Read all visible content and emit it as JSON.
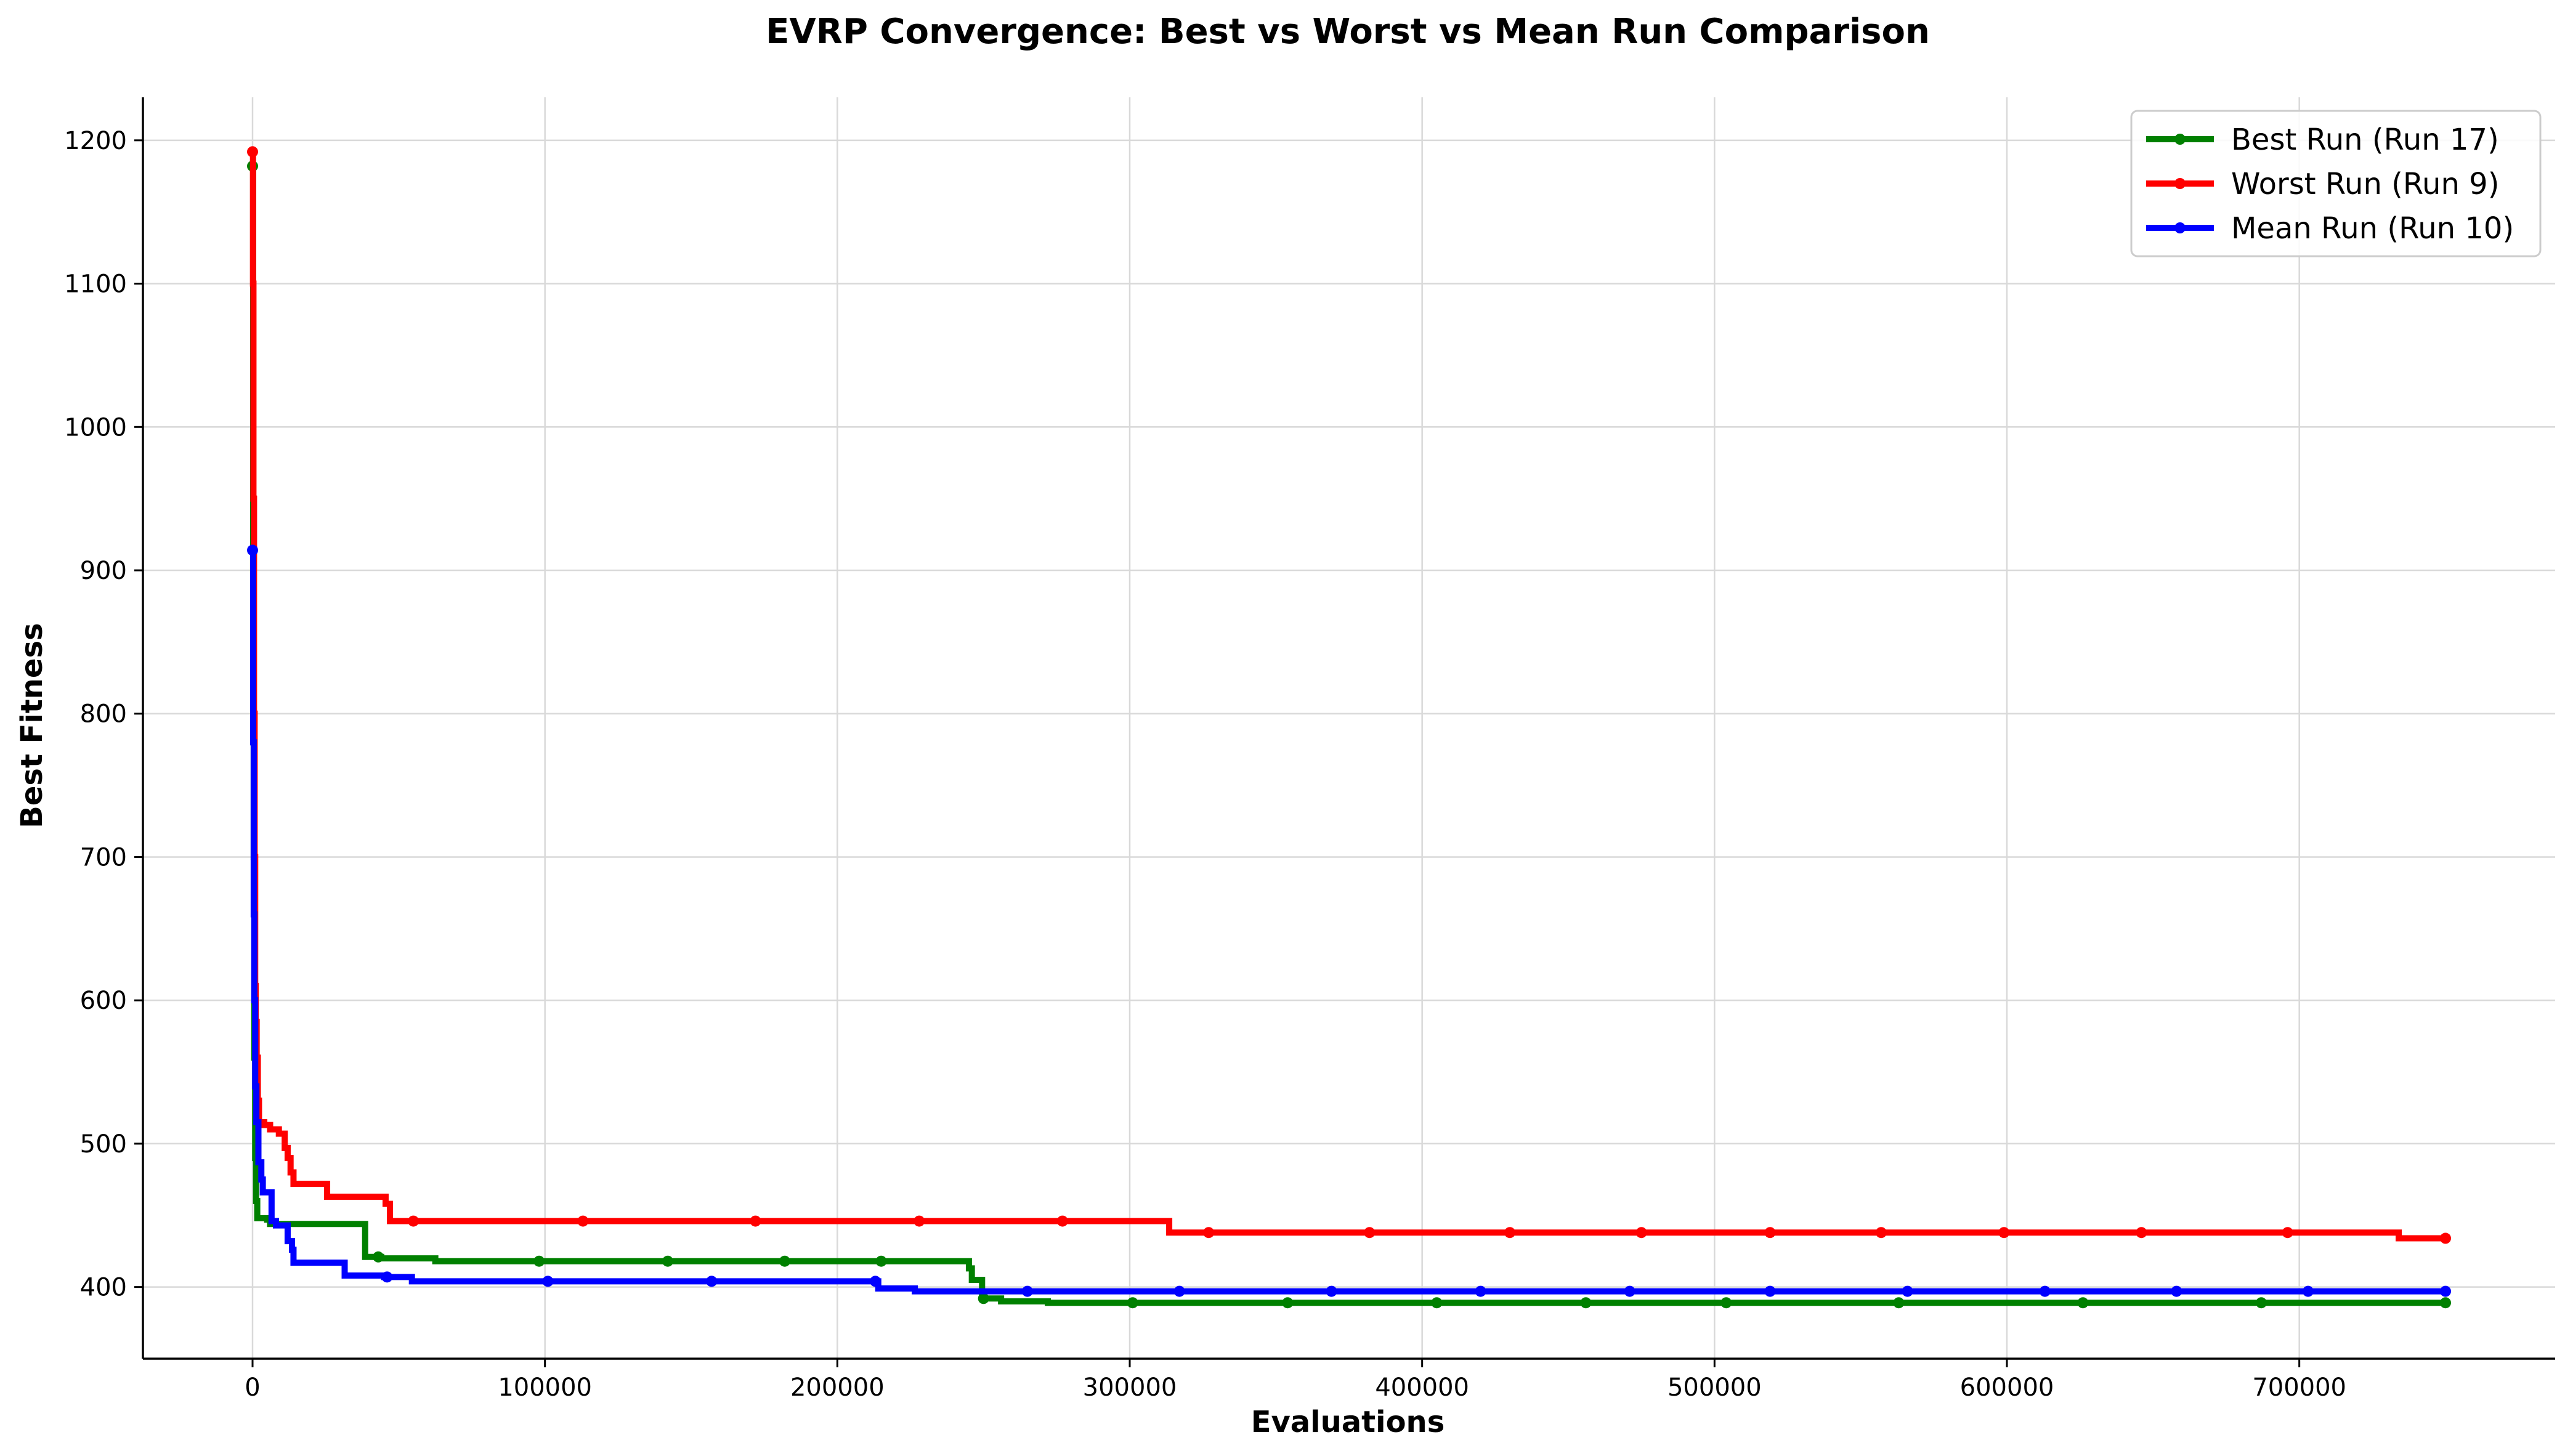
{
  "chart_data": {
    "type": "line",
    "title": "EVRP Convergence: Best vs Worst vs Mean Run Comparison",
    "xlabel": "Evaluations",
    "ylabel": "Best Fitness",
    "xlim": [
      -37500,
      787500
    ],
    "ylim": [
      350,
      1230
    ],
    "xticks": [
      0,
      100000,
      200000,
      300000,
      400000,
      500000,
      600000,
      700000
    ],
    "yticks": [
      400,
      500,
      600,
      700,
      800,
      900,
      1000,
      1100,
      1200
    ],
    "grid": true,
    "legend_position": "top-right",
    "series": [
      {
        "name": "Best Run (Run 17)",
        "color": "#008000",
        "step": true,
        "points": [
          [
            0,
            1182
          ],
          [
            200,
            900
          ],
          [
            400,
            700
          ],
          [
            600,
            560
          ],
          [
            900,
            490
          ],
          [
            1200,
            460
          ],
          [
            1600,
            448
          ],
          [
            5000,
            447
          ],
          [
            6000,
            444
          ],
          [
            38000,
            444
          ],
          [
            38500,
            421
          ],
          [
            43000,
            421
          ],
          [
            44000,
            420
          ],
          [
            62000,
            420
          ],
          [
            62500,
            418
          ],
          [
            244000,
            418
          ],
          [
            245000,
            413
          ],
          [
            246000,
            405
          ],
          [
            249000,
            405
          ],
          [
            249500,
            392
          ],
          [
            256000,
            390
          ],
          [
            272000,
            389
          ],
          [
            750000,
            389
          ]
        ],
        "markers": [
          [
            0,
            1182
          ],
          [
            43000,
            421
          ],
          [
            98000,
            418
          ],
          [
            142000,
            418
          ],
          [
            182000,
            418
          ],
          [
            215000,
            418
          ],
          [
            250000,
            392
          ],
          [
            301000,
            389
          ],
          [
            354000,
            389
          ],
          [
            405000,
            389
          ],
          [
            456000,
            389
          ],
          [
            504000,
            389
          ],
          [
            563000,
            389
          ],
          [
            626000,
            389
          ],
          [
            687000,
            389
          ],
          [
            750000,
            389
          ]
        ]
      },
      {
        "name": "Worst Run (Run 9)",
        "color": "#ff0000",
        "step": true,
        "points": [
          [
            0,
            1192
          ],
          [
            150,
            1100
          ],
          [
            300,
            950
          ],
          [
            500,
            800
          ],
          [
            700,
            700
          ],
          [
            900,
            610
          ],
          [
            1100,
            585
          ],
          [
            1400,
            560
          ],
          [
            1800,
            530
          ],
          [
            2200,
            515
          ],
          [
            4000,
            513
          ],
          [
            6000,
            510
          ],
          [
            9000,
            507
          ],
          [
            11000,
            497
          ],
          [
            12000,
            490
          ],
          [
            13000,
            480
          ],
          [
            14000,
            472
          ],
          [
            25000,
            472
          ],
          [
            25500,
            463
          ],
          [
            45000,
            463
          ],
          [
            45500,
            458
          ],
          [
            47000,
            446
          ],
          [
            313000,
            446
          ],
          [
            313500,
            438
          ],
          [
            733000,
            438
          ],
          [
            734000,
            434
          ],
          [
            750000,
            434
          ]
        ],
        "markers": [
          [
            0,
            1192
          ],
          [
            55000,
            446
          ],
          [
            113000,
            446
          ],
          [
            172000,
            446
          ],
          [
            228000,
            446
          ],
          [
            277000,
            446
          ],
          [
            327000,
            438
          ],
          [
            382000,
            438
          ],
          [
            430000,
            438
          ],
          [
            475000,
            438
          ],
          [
            519000,
            438
          ],
          [
            557000,
            438
          ],
          [
            599000,
            438
          ],
          [
            646000,
            438
          ],
          [
            696000,
            438
          ],
          [
            750000,
            434
          ]
        ]
      },
      {
        "name": "Mean Run (Run 10)",
        "color": "#0000ff",
        "step": true,
        "points": [
          [
            0,
            914
          ],
          [
            200,
            780
          ],
          [
            400,
            660
          ],
          [
            600,
            600
          ],
          [
            900,
            540
          ],
          [
            1300,
            515
          ],
          [
            2000,
            487
          ],
          [
            3000,
            475
          ],
          [
            3500,
            466
          ],
          [
            6000,
            466
          ],
          [
            6500,
            446
          ],
          [
            8000,
            443
          ],
          [
            11000,
            443
          ],
          [
            12000,
            432
          ],
          [
            13500,
            426
          ],
          [
            14000,
            417
          ],
          [
            31000,
            417
          ],
          [
            31500,
            408
          ],
          [
            44000,
            408
          ],
          [
            45000,
            407
          ],
          [
            54000,
            407
          ],
          [
            54500,
            404
          ],
          [
            213000,
            404
          ],
          [
            214000,
            399
          ],
          [
            226000,
            399
          ],
          [
            226500,
            397
          ],
          [
            750000,
            397
          ]
        ],
        "markers": [
          [
            0,
            914
          ],
          [
            46000,
            407
          ],
          [
            101000,
            404
          ],
          [
            157000,
            404
          ],
          [
            213000,
            404
          ],
          [
            265000,
            397
          ],
          [
            317000,
            397
          ],
          [
            369000,
            397
          ],
          [
            420000,
            397
          ],
          [
            471000,
            397
          ],
          [
            519000,
            397
          ],
          [
            566000,
            397
          ],
          [
            613000,
            397
          ],
          [
            658000,
            397
          ],
          [
            703000,
            397
          ],
          [
            750000,
            397
          ]
        ]
      }
    ]
  }
}
